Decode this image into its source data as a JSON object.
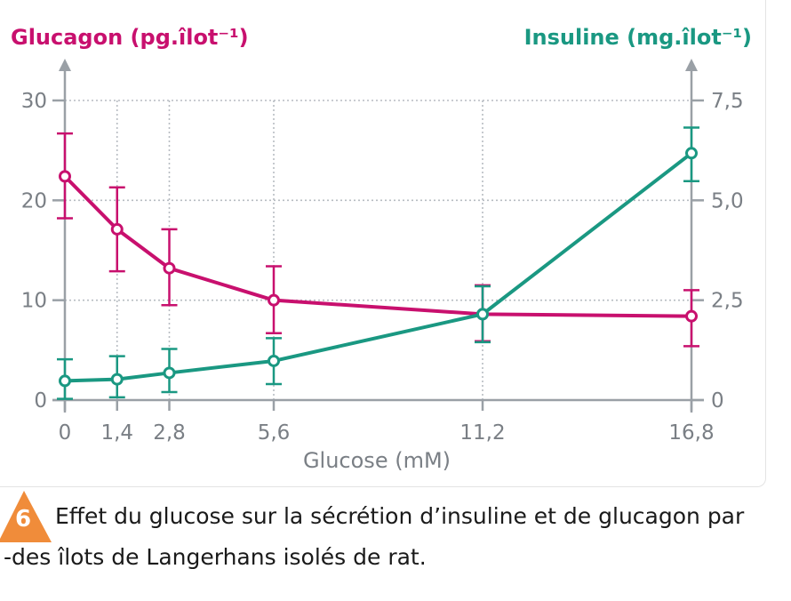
{
  "figure": {
    "number": "6",
    "caption_line1": "Effet du glucose sur la sécrétion d’insuline et de glucagon par",
    "caption_line2": "-des îlots de Langerhans isolés de rat."
  },
  "colors": {
    "glucagon": "#c8106e",
    "insuline": "#1a9882",
    "axis": "#9aa0a6",
    "badge": "#f08c3a"
  },
  "chart_data": {
    "type": "line",
    "xlabel": "Glucose (mM)",
    "y_left_label": "Glucagon (pg.îlot⁻¹)",
    "y_right_label": "Insuline (mg.îlot⁻¹)",
    "x": [
      0,
      1.4,
      2.8,
      5.6,
      11.2,
      16.8
    ],
    "x_tick_labels": [
      "0",
      "1,4",
      "2,8",
      "5,6",
      "11,2",
      "16,8"
    ],
    "ylim_left": [
      0,
      30
    ],
    "ylim_right": [
      0,
      7.5
    ],
    "y_left_ticks": [
      0,
      10,
      20,
      30
    ],
    "y_left_tick_labels": [
      "0",
      "10",
      "20",
      "30"
    ],
    "y_right_ticks": [
      0,
      2.5,
      5.0,
      7.5
    ],
    "y_right_tick_labels": [
      "0",
      "2,5",
      "5,0",
      "7,5"
    ],
    "grid": true,
    "series": [
      {
        "name": "Glucagon (pg.îlot⁻¹)",
        "axis": "left",
        "values": [
          22.4,
          17.1,
          13.2,
          10.0,
          8.6,
          8.4
        ],
        "err_low": [
          18.2,
          12.9,
          9.5,
          6.7,
          5.9,
          5.4
        ],
        "err_high": [
          26.7,
          21.3,
          17.1,
          13.4,
          11.5,
          11.0
        ]
      },
      {
        "name": "Insuline (mg.îlot⁻¹)",
        "axis": "right",
        "values": [
          0.48,
          0.52,
          0.68,
          0.98,
          2.15,
          6.18
        ],
        "err_low": [
          0.03,
          0.07,
          0.2,
          0.4,
          1.45,
          5.48
        ],
        "err_high": [
          1.02,
          1.1,
          1.28,
          1.55,
          2.85,
          6.82
        ]
      }
    ]
  }
}
